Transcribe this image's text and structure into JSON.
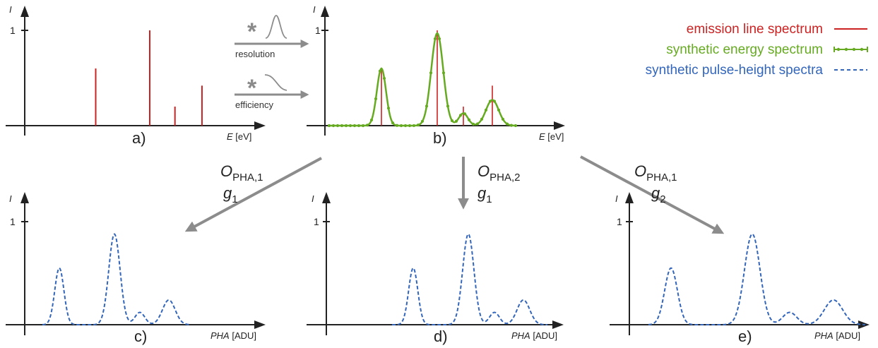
{
  "legend": {
    "items": [
      {
        "text": "emission line spectrum",
        "color": "#cc2222",
        "style": "solid"
      },
      {
        "text": "synthetic energy spectrum",
        "color": "#66aa22",
        "style": "dotted-solid"
      },
      {
        "text": "synthetic pulse-height spectra",
        "color": "#3366bb",
        "style": "dashed"
      }
    ]
  },
  "panels": {
    "a": {
      "letter": "a)",
      "ylabel": "I",
      "tick": "1",
      "xlabel_it": "E",
      "xlabel_unit": "[eV]"
    },
    "b": {
      "letter": "b)",
      "ylabel": "I",
      "tick": "1",
      "xlabel_it": "E",
      "xlabel_unit": "[eV]"
    },
    "c": {
      "letter": "c)",
      "ylabel": "I",
      "tick": "1",
      "xlabel_it": "PHA",
      "xlabel_unit": "[ADU]"
    },
    "d": {
      "letter": "d)",
      "ylabel": "I",
      "tick": "1",
      "xlabel_it": "PHA",
      "xlabel_unit": "[ADU]"
    },
    "e": {
      "letter": "e)",
      "ylabel": "I",
      "tick": "1",
      "xlabel_it": "PHA",
      "xlabel_unit": "[ADU]"
    }
  },
  "convolutions": {
    "top": {
      "symbol": "*",
      "label": "resolution"
    },
    "bottom": {
      "symbol": "*",
      "label": "efficiency"
    }
  },
  "operators": {
    "left": {
      "o": "O",
      "o_sub": "PHA,1",
      "g": "g",
      "g_sub": "1"
    },
    "middle": {
      "o": "O",
      "o_sub": "PHA,2",
      "g": "g",
      "g_sub": "1"
    },
    "right": {
      "o": "O",
      "o_sub": "PHA,1",
      "g": "g",
      "g_sub": "2"
    }
  },
  "lines": [
    {
      "position": 0.3,
      "height": 0.6
    },
    {
      "position": 0.6,
      "height": 1.0
    },
    {
      "position": 0.74,
      "height": 0.2
    },
    {
      "position": 0.89,
      "height": 0.42
    }
  ],
  "colors": {
    "emission": "#cc2222",
    "energy": "#66aa22",
    "pha": "#3366bb",
    "arrow": "#8c8c8c"
  }
}
